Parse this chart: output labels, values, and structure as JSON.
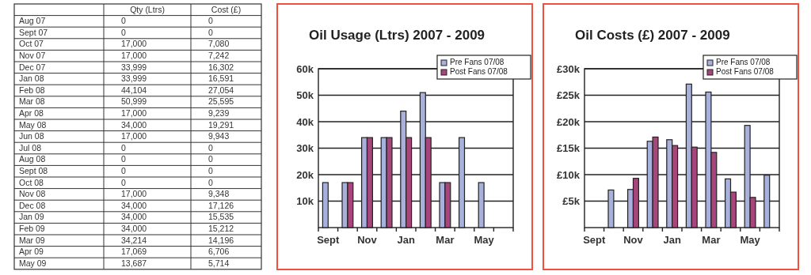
{
  "chart_data": [
    {
      "type": "other",
      "categories": [
        "Aug 07",
        "Sept 07",
        "Oct 07",
        "Nov 07",
        "Dec 07",
        "Jan 08",
        "Feb 08",
        "Mar 08",
        "Apr 08",
        "May 08",
        "Jun 08",
        "Jul 08",
        "Aug 08",
        "Sept 08",
        "Oct 08",
        "Nov 08",
        "Dec 08",
        "Jan 09",
        "Feb 09",
        "Mar 09",
        "Apr 09",
        "May 09"
      ],
      "series": [
        {
          "name": "Qty (Ltrs)",
          "values": [
            0,
            0,
            17000,
            17000,
            33999,
            33999,
            44104,
            50999,
            17000,
            34000,
            17000,
            0,
            0,
            0,
            0,
            17000,
            34000,
            34000,
            34000,
            34214,
            17069,
            13687
          ],
          "value_labels": [
            "0",
            "0",
            "17,000",
            "17,000",
            "33,999",
            "33,999",
            "44,104",
            "50,999",
            "17,000",
            "34,000",
            "17,000",
            "0",
            "0",
            "0",
            "0",
            "17,000",
            "34,000",
            "34,000",
            "34,000",
            "34,214",
            "17,069",
            "13,687"
          ]
        },
        {
          "name": "Cost (£)",
          "values": [
            0,
            0,
            7080,
            7242,
            16302,
            16591,
            27054,
            25595,
            9239,
            19291,
            9943,
            0,
            0,
            0,
            0,
            9348,
            17126,
            15535,
            15212,
            14196,
            6706,
            5714
          ],
          "value_labels": [
            "0",
            "0",
            "7,080",
            "7,242",
            "16,302",
            "16,591",
            "27,054",
            "25,595",
            "9,239",
            "19,291",
            "9,943",
            "0",
            "0",
            "0",
            "0",
            "9,348",
            "17,126",
            "15,535",
            "15,212",
            "14,196",
            "6,706",
            "5,714"
          ]
        }
      ]
    },
    {
      "type": "bar",
      "title": "Oil Usage (Ltrs) 2007 - 2009",
      "categories": [
        "Sept",
        null,
        "Nov",
        null,
        "Jan",
        null,
        "Mar",
        null,
        "May",
        null
      ],
      "ylim": [
        0,
        60000
      ],
      "yticks": [
        {
          "value": 10000,
          "label": "10k"
        },
        {
          "value": 20000,
          "label": "20k"
        },
        {
          "value": 30000,
          "label": "30k"
        },
        {
          "value": 40000,
          "label": "40k"
        },
        {
          "value": 50000,
          "label": "50k"
        },
        {
          "value": 60000,
          "label": "60k"
        }
      ],
      "grid": "y",
      "legend": "top right",
      "series": [
        {
          "name": "Pre Fans 07/08",
          "color": "#a8b0dc",
          "values": [
            17000,
            17000,
            34000,
            34000,
            44000,
            51000,
            17000,
            34000,
            17000,
            null
          ]
        },
        {
          "name": "Post Fans 07/08",
          "color": "#a8457a",
          "values": [
            null,
            17000,
            34000,
            34000,
            34000,
            34000,
            17000,
            null,
            null,
            null
          ]
        }
      ]
    },
    {
      "type": "bar",
      "title": "Oil Costs (£) 2007 - 2009",
      "categories": [
        "Sept",
        null,
        "Nov",
        null,
        "Jan",
        null,
        "Mar",
        null,
        "May",
        null
      ],
      "ylim": [
        0,
        30000
      ],
      "yticks": [
        {
          "value": 5000,
          "label": "£5k"
        },
        {
          "value": 10000,
          "label": "£10k"
        },
        {
          "value": 15000,
          "label": "£15k"
        },
        {
          "value": 20000,
          "label": "£20k"
        },
        {
          "value": 25000,
          "label": "£25k"
        },
        {
          "value": 30000,
          "label": "£30k"
        }
      ],
      "grid": "y",
      "legend": "top right",
      "series": [
        {
          "name": "Pre Fans 07/08",
          "color": "#a8b0dc",
          "values": [
            null,
            7100,
            7200,
            16300,
            16600,
            27100,
            25600,
            9200,
            19300,
            9900
          ]
        },
        {
          "name": "Post Fans 07/08",
          "color": "#a8457a",
          "values": [
            null,
            null,
            9300,
            17100,
            15500,
            15200,
            14200,
            6700,
            5700,
            null
          ]
        }
      ]
    }
  ]
}
